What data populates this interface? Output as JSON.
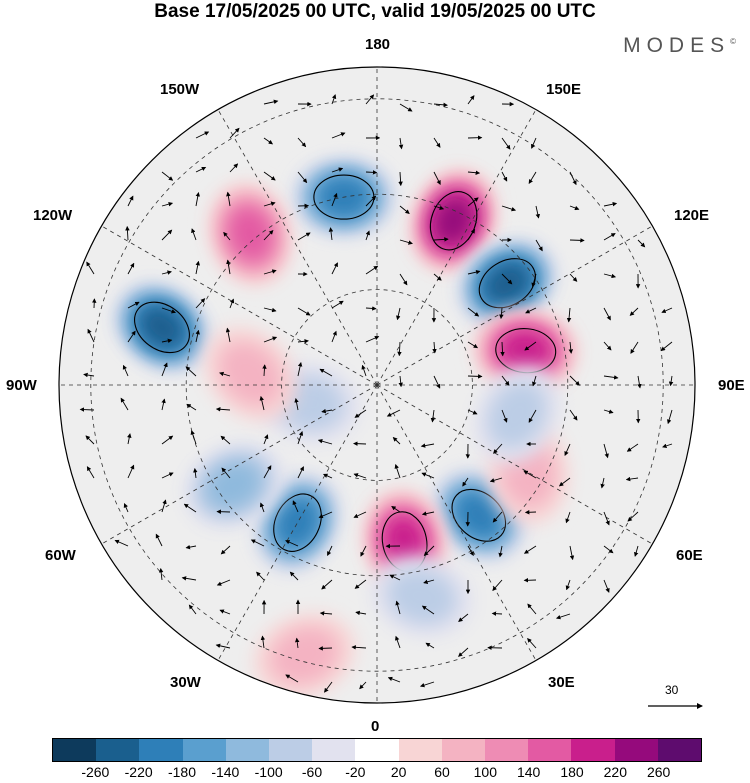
{
  "title": "Base 17/05/2025 00 UTC, valid 19/05/2025 00 UTC",
  "brand": "MODES",
  "brand_mark": "©",
  "longitude_labels": {
    "top": "180",
    "bottom": "0",
    "left": "90W",
    "right": "90E",
    "upper_left_1": "150W",
    "upper_left_2": "120W",
    "upper_right_1": "150E",
    "upper_right_2": "120E",
    "lower_left_1": "60W",
    "lower_left_2": "30W",
    "lower_right_1": "60E",
    "lower_right_2": "30E"
  },
  "vector_scale_label": "30",
  "colorbar": {
    "colors": [
      "#0d3a5c",
      "#1a5f8e",
      "#2e7fb8",
      "#5a9fcf",
      "#8fbadd",
      "#bccde6",
      "#e2e2ef",
      "#ffffff",
      "#f8d5d5",
      "#f4b3c2",
      "#ee8cb4",
      "#e35aa3",
      "#c91f8c",
      "#950a7c",
      "#5e0c6e"
    ],
    "ticks": [
      "-260",
      "-220",
      "-180",
      "-140",
      "-100",
      "-60",
      "-20",
      "20",
      "60",
      "100",
      "140",
      "180",
      "220",
      "260"
    ]
  },
  "map": {
    "projection": "north polar stereographic",
    "background_color": "#eeeeee",
    "shading": "anomaly field with vector arrows and contour lines",
    "features": [
      {
        "sign": "negative",
        "lon": -170,
        "r": 0.6,
        "value": -190
      },
      {
        "sign": "negative",
        "lon": -105,
        "r": 0.7,
        "value": -230
      },
      {
        "sign": "positive",
        "lon": -140,
        "r": 0.62,
        "value": 160
      },
      {
        "sign": "positive",
        "lon": 155,
        "r": 0.57,
        "value": 240
      },
      {
        "sign": "negative",
        "lon": 128,
        "r": 0.52,
        "value": -250
      },
      {
        "sign": "positive",
        "lon": 103,
        "r": 0.48,
        "value": 200
      },
      {
        "sign": "negative",
        "lon": 38,
        "r": 0.52,
        "value": -200
      },
      {
        "sign": "positive",
        "lon": 10,
        "r": 0.5,
        "value": 200
      },
      {
        "sign": "negative",
        "lon": -30,
        "r": 0.5,
        "value": -190
      },
      {
        "sign": "negative",
        "lon": -55,
        "r": 0.55,
        "value": -110
      },
      {
        "sign": "negative",
        "lon": -75,
        "r": 0.22,
        "value": -80
      },
      {
        "sign": "positive",
        "lon": -95,
        "r": 0.4,
        "value": 70
      },
      {
        "sign": "positive",
        "lon": 60,
        "r": 0.55,
        "value": 80
      },
      {
        "sign": "negative",
        "lon": 78,
        "r": 0.45,
        "value": -60
      },
      {
        "sign": "positive",
        "lon": -15,
        "r": 0.88,
        "value": 60
      },
      {
        "sign": "negative",
        "lon": 12,
        "r": 0.68,
        "value": -90
      }
    ]
  }
}
